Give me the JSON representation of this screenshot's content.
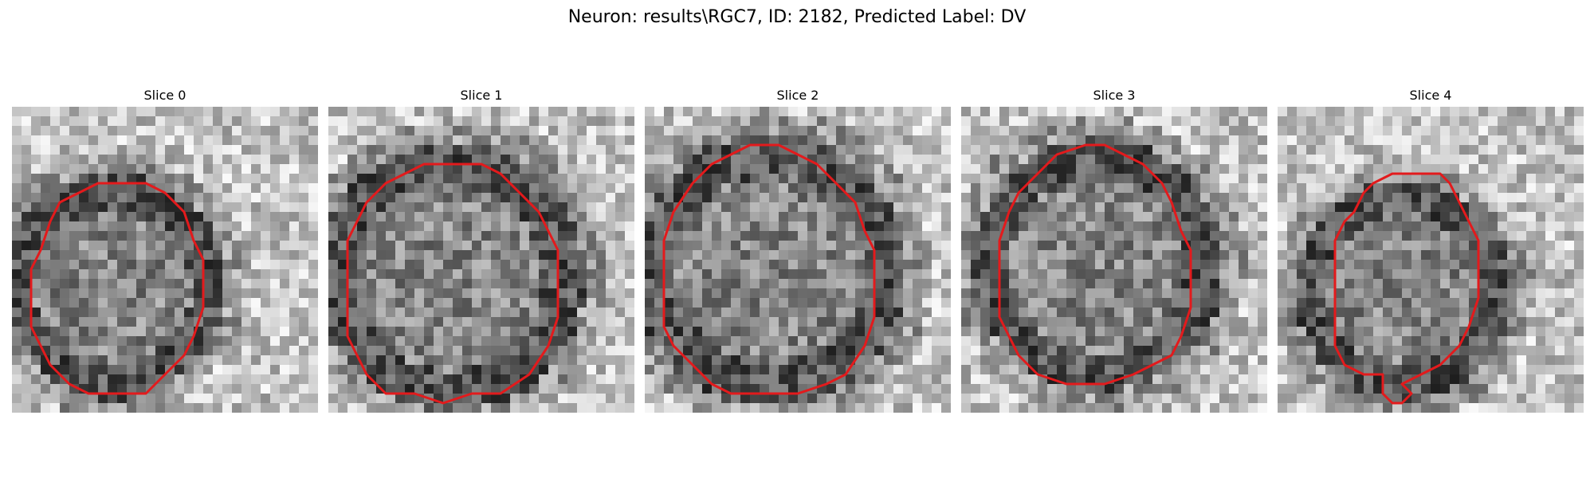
{
  "title": "Neuron: results\\RGC7, ID: 2182, Predicted Label: DV",
  "image_style": {
    "colormap": "gray",
    "contour_color": "#e31a1c",
    "axes_visible": false
  },
  "slices": [
    {
      "title": "Slice 0",
      "seed": 11,
      "contour": [
        [
          14,
          8
        ],
        [
          16,
          9
        ],
        [
          18,
          11
        ],
        [
          19,
          14
        ],
        [
          20,
          16
        ],
        [
          20,
          21
        ],
        [
          19,
          24
        ],
        [
          18,
          26
        ],
        [
          16,
          28
        ],
        [
          14,
          30
        ],
        [
          11,
          30
        ],
        [
          8,
          30
        ],
        [
          6,
          29
        ],
        [
          4,
          27
        ],
        [
          3,
          25
        ],
        [
          2,
          23
        ],
        [
          2,
          20
        ],
        [
          2,
          17
        ],
        [
          3,
          15
        ],
        [
          4,
          12
        ],
        [
          5,
          10
        ],
        [
          7,
          9
        ],
        [
          9,
          8
        ],
        [
          12,
          8
        ]
      ]
    },
    {
      "title": "Slice 1",
      "seed": 23,
      "contour": [
        [
          16,
          6
        ],
        [
          18,
          7
        ],
        [
          20,
          9
        ],
        [
          22,
          11
        ],
        [
          23,
          13
        ],
        [
          24,
          15
        ],
        [
          24,
          19
        ],
        [
          24,
          22
        ],
        [
          23,
          25
        ],
        [
          21,
          28
        ],
        [
          18,
          30
        ],
        [
          15,
          30
        ],
        [
          12,
          31
        ],
        [
          9,
          30
        ],
        [
          6,
          30
        ],
        [
          4,
          28
        ],
        [
          3,
          26
        ],
        [
          2,
          24
        ],
        [
          2,
          18
        ],
        [
          2,
          14
        ],
        [
          3,
          12
        ],
        [
          4,
          10
        ],
        [
          6,
          8
        ],
        [
          8,
          7
        ],
        [
          10,
          6
        ],
        [
          13,
          6
        ]
      ]
    },
    {
      "title": "Slice 2",
      "seed": 37,
      "contour": [
        [
          14,
          4
        ],
        [
          16,
          5
        ],
        [
          18,
          6
        ],
        [
          20,
          8
        ],
        [
          22,
          10
        ],
        [
          23,
          13
        ],
        [
          24,
          15
        ],
        [
          24,
          19
        ],
        [
          24,
          22
        ],
        [
          23,
          25
        ],
        [
          21,
          28
        ],
        [
          19,
          29
        ],
        [
          16,
          30
        ],
        [
          12,
          30
        ],
        [
          9,
          30
        ],
        [
          7,
          29
        ],
        [
          5,
          27
        ],
        [
          3,
          25
        ],
        [
          2,
          23
        ],
        [
          2,
          18
        ],
        [
          2,
          14
        ],
        [
          3,
          11
        ],
        [
          5,
          8
        ],
        [
          7,
          6
        ],
        [
          9,
          5
        ],
        [
          11,
          4
        ]
      ]
    },
    {
      "title": "Slice 3",
      "seed": 53,
      "contour": [
        [
          15,
          4
        ],
        [
          17,
          5
        ],
        [
          19,
          6
        ],
        [
          21,
          8
        ],
        [
          22,
          10
        ],
        [
          23,
          13
        ],
        [
          24,
          15
        ],
        [
          24,
          19
        ],
        [
          24,
          21
        ],
        [
          23,
          24
        ],
        [
          22,
          26
        ],
        [
          20,
          27
        ],
        [
          18,
          28
        ],
        [
          15,
          29
        ],
        [
          11,
          29
        ],
        [
          8,
          28
        ],
        [
          6,
          26
        ],
        [
          5,
          24
        ],
        [
          4,
          22
        ],
        [
          4,
          18
        ],
        [
          4,
          14
        ],
        [
          5,
          11
        ],
        [
          6,
          9
        ],
        [
          8,
          7
        ],
        [
          10,
          5
        ],
        [
          13,
          4
        ]
      ]
    },
    {
      "title": "Slice 4",
      "seed": 71,
      "contour": [
        [
          15,
          7
        ],
        [
          17,
          7
        ],
        [
          18,
          8
        ],
        [
          19,
          10
        ],
        [
          20,
          12
        ],
        [
          21,
          14
        ],
        [
          21,
          17
        ],
        [
          21,
          20
        ],
        [
          20,
          23
        ],
        [
          19,
          25
        ],
        [
          17,
          27
        ],
        [
          15,
          28
        ],
        [
          13,
          29
        ],
        [
          14,
          30
        ],
        [
          13,
          31
        ],
        [
          12,
          31
        ],
        [
          11,
          30
        ],
        [
          11,
          28
        ],
        [
          9,
          28
        ],
        [
          7,
          27
        ],
        [
          6,
          25
        ],
        [
          6,
          22
        ],
        [
          6,
          18
        ],
        [
          6,
          14
        ],
        [
          7,
          12
        ],
        [
          8,
          11
        ],
        [
          9,
          9
        ],
        [
          10,
          8
        ],
        [
          12,
          7
        ]
      ]
    }
  ]
}
